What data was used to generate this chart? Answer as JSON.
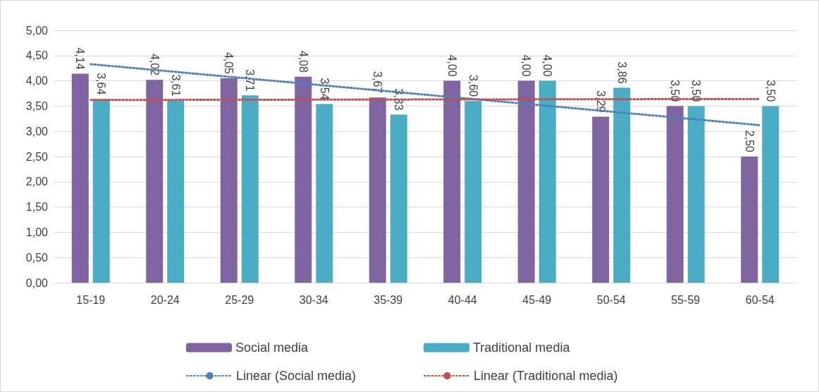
{
  "chart_data": {
    "type": "bar",
    "categories": [
      "15-19",
      "20-24",
      "25-29",
      "30-34",
      "35-39",
      "40-44",
      "45-49",
      "50-54",
      "55-59",
      "60-54"
    ],
    "series": [
      {
        "name": "Social media",
        "color": "#8064a2",
        "values": [
          4.14,
          4.02,
          4.05,
          4.08,
          3.67,
          4.0,
          4.0,
          3.29,
          3.5,
          2.5
        ],
        "value_labels": [
          "4,14",
          "4,02",
          "4,05",
          "4,08",
          "3,67",
          "4,00",
          "4,00",
          "3,29",
          "3,50",
          "2,50"
        ]
      },
      {
        "name": "Traditional media",
        "color": "#4bacc6",
        "values": [
          3.64,
          3.61,
          3.71,
          3.54,
          3.33,
          3.6,
          4.0,
          3.86,
          3.5,
          3.5
        ],
        "value_labels": [
          "3,64",
          "3,61",
          "3,71",
          "3,54",
          "3,33",
          "3,60",
          "4,00",
          "3,86",
          "3,50",
          "3,50"
        ]
      },
      {
        "name": "Linear (Social media)",
        "type": "line",
        "color": "#4f81bd",
        "x": [
          "15-19",
          "60-54"
        ],
        "values": [
          4.33,
          3.12
        ],
        "line_style": "dotted",
        "marker": "none"
      },
      {
        "name": "Linear (Traditional media)",
        "type": "line",
        "color": "#c0504d",
        "x": [
          "15-19",
          "60-54"
        ],
        "values": [
          3.62,
          3.64
        ],
        "line_style": "dotted",
        "marker": "none"
      }
    ],
    "ylim": [
      0,
      5
    ],
    "yticks": [
      {
        "value": 0,
        "label": "0,00"
      },
      {
        "value": 0.5,
        "label": "0,50"
      },
      {
        "value": 1,
        "label": "1,00"
      },
      {
        "value": 1.5,
        "label": "1,50"
      },
      {
        "value": 2,
        "label": "2,00"
      },
      {
        "value": 2.5,
        "label": "2,50"
      },
      {
        "value": 3,
        "label": "3,00"
      },
      {
        "value": 3.5,
        "label": "3,50"
      },
      {
        "value": 4,
        "label": "4,00"
      },
      {
        "value": 4.5,
        "label": "4,50"
      },
      {
        "value": 5,
        "label": "5,00"
      }
    ],
    "grid": "y",
    "legend": "bottom"
  }
}
